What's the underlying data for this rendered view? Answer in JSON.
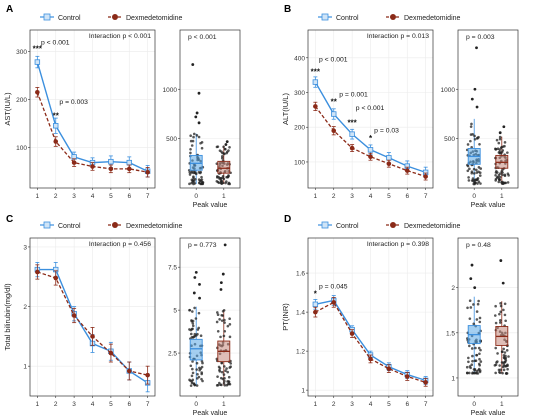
{
  "legend": {
    "control_label": "Control",
    "dex_label": "Dexmedetomidine"
  },
  "colors": {
    "control": "#3b8fde",
    "dex": "#8b2a18",
    "box_control_fill": "#5aa7e6",
    "box_dex_fill": "#c4897b",
    "axis": "#333333",
    "grid": "#ebebeb"
  },
  "chart_data": [
    {
      "panel": "A",
      "type": "line",
      "ylabel": "AST(IU/L)",
      "xlabel": "",
      "x": [
        1,
        2,
        3,
        4,
        5,
        6,
        7
      ],
      "xticks": [
        "1",
        "2",
        "3",
        "4",
        "5",
        "6",
        "7"
      ],
      "ylim": [
        15,
        345
      ],
      "yticks": [
        100,
        200,
        300
      ],
      "interaction_text": "Interaction p < 0.001",
      "series": [
        {
          "name": "Control",
          "values": [
            278,
            145,
            80,
            68,
            70,
            68,
            50
          ],
          "err": [
            12,
            16,
            10,
            10,
            12,
            12,
            12
          ]
        },
        {
          "name": "Dexmedetomidine",
          "values": [
            215,
            112,
            68,
            60,
            55,
            55,
            48
          ],
          "err": [
            10,
            10,
            8,
            8,
            8,
            8,
            10
          ]
        }
      ],
      "annotations": [
        {
          "text": "***",
          "x": 1,
          "y": 300
        },
        {
          "text": "p < 0.001",
          "x": 1.2,
          "y": 315
        },
        {
          "text": "**",
          "x": 2,
          "y": 160
        },
        {
          "text": "p = 0.003",
          "x": 2.2,
          "y": 190
        }
      ],
      "box": {
        "xlabel": "Peak value",
        "categories": [
          "0",
          "1"
        ],
        "ylim": [
          0,
          1600
        ],
        "yticks": [
          500,
          1000
        ],
        "p_text": "p < 0.001",
        "stats": [
          {
            "q1": 180,
            "median": 250,
            "q3": 330,
            "whisker_low": 40,
            "whisker_high": 550
          },
          {
            "q1": 150,
            "median": 200,
            "q3": 270,
            "whisker_low": 40,
            "whisker_high": 430
          }
        ],
        "outliers": [
          [
            1250,
            960,
            760,
            720,
            660
          ],
          [
            470,
            440
          ]
        ]
      }
    },
    {
      "panel": "B",
      "type": "line",
      "ylabel": "ALT(IU/L)",
      "xlabel": "",
      "x": [
        1,
        2,
        3,
        4,
        5,
        6,
        7
      ],
      "xticks": [
        "1",
        "2",
        "3",
        "4",
        "5",
        "6",
        "7"
      ],
      "ylim": [
        25,
        480
      ],
      "yticks": [
        100,
        200,
        300,
        400
      ],
      "interaction_text": "Interaction p = 0.013",
      "series": [
        {
          "name": "Control",
          "values": [
            330,
            238,
            180,
            135,
            112,
            88,
            70
          ],
          "err": [
            15,
            15,
            14,
            14,
            15,
            15,
            15
          ]
        },
        {
          "name": "Dexmedetomidine",
          "values": [
            260,
            190,
            140,
            115,
            95,
            75,
            58
          ],
          "err": [
            12,
            12,
            10,
            10,
            10,
            10,
            10
          ]
        }
      ],
      "annotations": [
        {
          "text": "***",
          "x": 1,
          "y": 352
        },
        {
          "text": "p < 0.001",
          "x": 1.2,
          "y": 390
        },
        {
          "text": "**",
          "x": 2,
          "y": 265
        },
        {
          "text": "p = 0.001",
          "x": 2.3,
          "y": 288
        },
        {
          "text": "***",
          "x": 3,
          "y": 205
        },
        {
          "text": "p < 0.001",
          "x": 3.2,
          "y": 250
        },
        {
          "text": "*",
          "x": 4,
          "y": 160
        },
        {
          "text": "p = 0.03",
          "x": 4.2,
          "y": 185
        }
      ],
      "box": {
        "xlabel": "Peak value",
        "categories": [
          "0",
          "1"
        ],
        "ylim": [
          0,
          1600
        ],
        "yticks": [
          500,
          1000
        ],
        "p_text": "p = 0.003",
        "stats": [
          {
            "q1": 240,
            "median": 320,
            "q3": 400,
            "whisker_low": 40,
            "whisker_high": 700
          },
          {
            "q1": 200,
            "median": 260,
            "q3": 330,
            "whisker_low": 40,
            "whisker_high": 520
          }
        ],
        "outliers": [
          [
            1420,
            1000,
            900,
            820
          ],
          [
            620,
            560
          ]
        ]
      }
    },
    {
      "panel": "C",
      "type": "line",
      "ylabel": "Total bilirubin(mg/dl)",
      "xlabel": "",
      "x": [
        1,
        2,
        3,
        4,
        5,
        6,
        7
      ],
      "xticks": [
        "1",
        "2",
        "3",
        "4",
        "5",
        "6",
        "7"
      ],
      "ylim": [
        0.5,
        3.15
      ],
      "yticks": [
        1,
        2,
        3
      ],
      "interaction_text": "Interaction p = 0.456",
      "series": [
        {
          "name": "Control",
          "values": [
            2.62,
            2.62,
            1.88,
            1.38,
            1.25,
            0.92,
            0.72
          ],
          "err": [
            0.12,
            0.12,
            0.12,
            0.15,
            0.15,
            0.15,
            0.15
          ]
        },
        {
          "name": "Dexmedetomidine",
          "values": [
            2.58,
            2.48,
            1.85,
            1.5,
            1.22,
            0.92,
            0.85
          ],
          "err": [
            0.12,
            0.12,
            0.12,
            0.15,
            0.15,
            0.15,
            0.15
          ]
        }
      ],
      "annotations": [],
      "box": {
        "xlabel": "Peak value",
        "categories": [
          "0",
          "1"
        ],
        "ylim": [
          0,
          9.2
        ],
        "yticks": [
          2.5,
          5.0,
          7.5
        ],
        "p_text": "p = 0.773",
        "stats": [
          {
            "q1": 2.1,
            "median": 2.75,
            "q3": 3.3,
            "whisker_low": 0.6,
            "whisker_high": 5.2
          },
          {
            "q1": 2.0,
            "median": 2.6,
            "q3": 3.2,
            "whisker_low": 0.6,
            "whisker_high": 5.0
          }
        ],
        "outliers": [
          [
            7.2,
            6.9,
            6.5,
            6.0,
            5.7
          ],
          [
            8.8,
            7.1,
            6.6,
            6.2
          ]
        ]
      }
    },
    {
      "panel": "D",
      "type": "line",
      "ylabel": "PT(INR)",
      "xlabel": "",
      "x": [
        1,
        2,
        3,
        4,
        5,
        6,
        7
      ],
      "xticks": [
        "1",
        "2",
        "3",
        "4",
        "5",
        "6",
        "7"
      ],
      "ylim": [
        0.97,
        1.78
      ],
      "yticks": [
        1.0,
        1.2,
        1.4,
        1.6
      ],
      "interaction_text": "Interaction p = 0.398",
      "series": [
        {
          "name": "Control",
          "values": [
            1.44,
            1.46,
            1.31,
            1.18,
            1.12,
            1.08,
            1.05
          ],
          "err": [
            0.025,
            0.025,
            0.02,
            0.02,
            0.02,
            0.02,
            0.02
          ]
        },
        {
          "name": "Dexmedetomidine",
          "values": [
            1.4,
            1.45,
            1.29,
            1.16,
            1.11,
            1.07,
            1.04
          ],
          "err": [
            0.025,
            0.025,
            0.02,
            0.02,
            0.02,
            0.02,
            0.02
          ]
        }
      ],
      "annotations": [
        {
          "text": "*",
          "x": 1,
          "y": 1.48
        },
        {
          "text": "p = 0.045",
          "x": 1.2,
          "y": 1.52
        }
      ],
      "box": {
        "xlabel": "Peak value",
        "categories": [
          "0",
          "1"
        ],
        "ylim": [
          0.8,
          2.55
        ],
        "yticks": [
          1.0,
          1.5,
          2.0
        ],
        "p_text": "p = 0.48",
        "stats": [
          {
            "q1": 1.38,
            "median": 1.48,
            "q3": 1.58,
            "whisker_low": 1.05,
            "whisker_high": 1.9
          },
          {
            "q1": 1.36,
            "median": 1.46,
            "q3": 1.57,
            "whisker_low": 1.05,
            "whisker_high": 1.85
          }
        ],
        "outliers": [
          [
            2.25,
            2.1,
            2.0
          ],
          [
            2.3,
            2.05
          ]
        ]
      }
    }
  ]
}
